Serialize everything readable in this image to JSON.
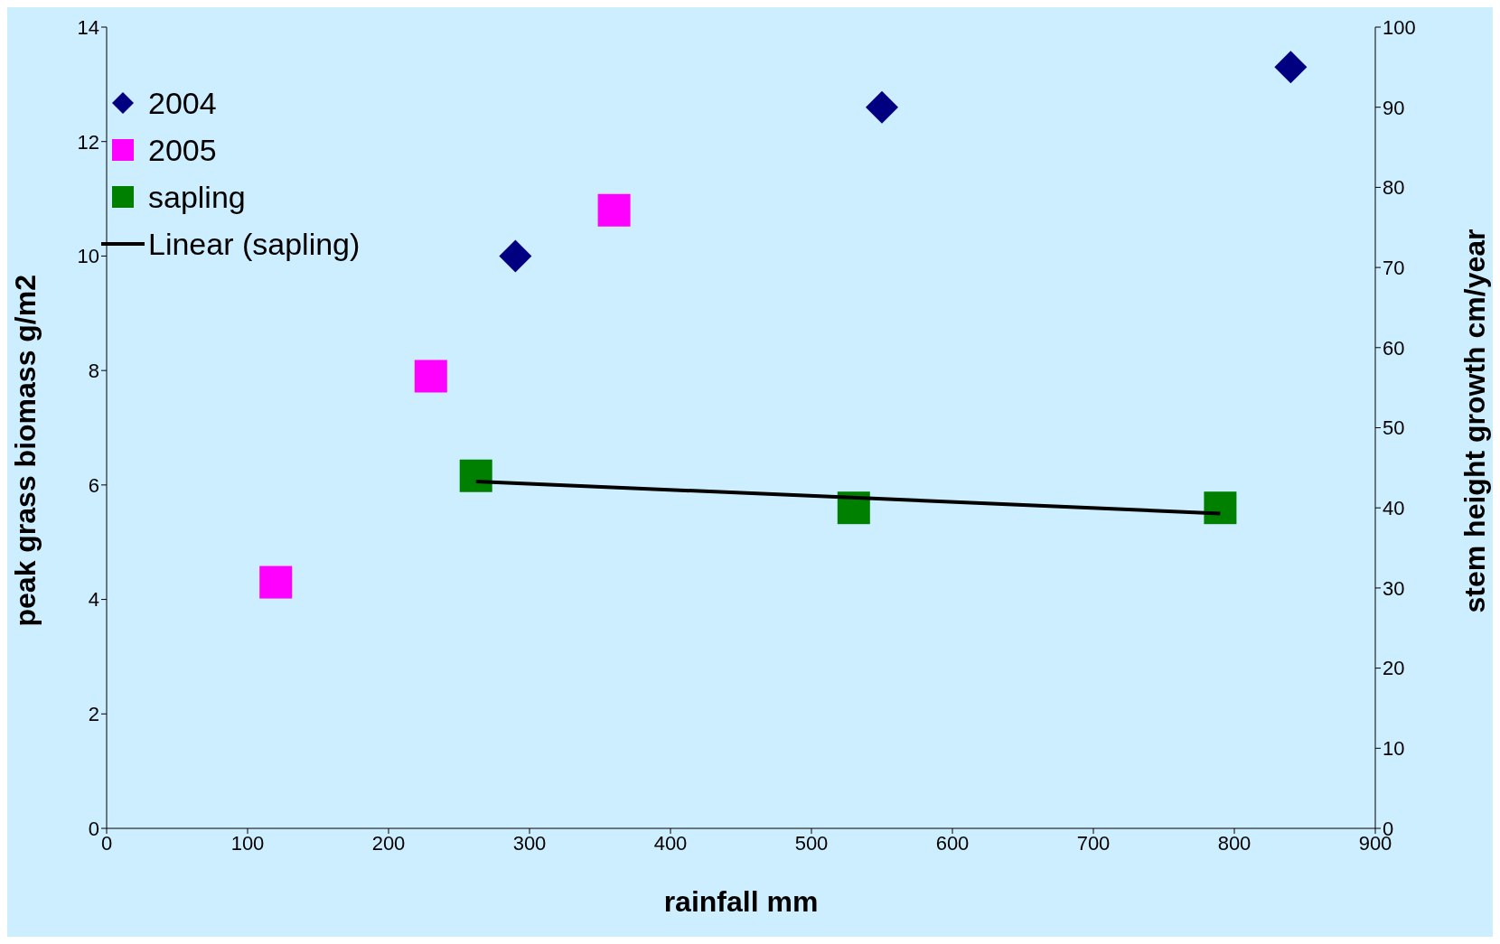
{
  "chart_data": {
    "type": "scatter",
    "xlabel": "rainfall mm",
    "ylabel": "peak grass biomass g/m2",
    "y2label": "stem height growth cm/year",
    "xlim": [
      0,
      900
    ],
    "xticks": [
      0,
      100,
      200,
      300,
      400,
      500,
      600,
      700,
      800,
      900
    ],
    "ylim": [
      0,
      14
    ],
    "yticks": [
      0,
      2,
      4,
      6,
      8,
      10,
      12,
      14
    ],
    "y2lim": [
      0,
      100
    ],
    "y2ticks": [
      0,
      10,
      20,
      30,
      40,
      50,
      60,
      70,
      80,
      90,
      100
    ],
    "grid": false,
    "legend": "top left",
    "series": [
      {
        "name": "2004",
        "color": "#000080",
        "marker": "diamond",
        "x": [
          290,
          550,
          840
        ],
        "values": [
          10.0,
          12.6,
          13.3
        ]
      },
      {
        "name": "2005",
        "color": "#ff00ff",
        "marker": "square",
        "x": [
          120,
          230,
          360
        ],
        "values": [
          4.3,
          7.9,
          10.8
        ]
      },
      {
        "name": "sapling",
        "color": "#008000",
        "marker": "square",
        "axis": "y2",
        "x": [
          262,
          530,
          790
        ],
        "values": [
          44,
          40,
          40
        ]
      },
      {
        "name": "Linear (sapling)",
        "type": "line",
        "color": "#000000",
        "marker": "none",
        "line_style": "solid",
        "axis": "y2",
        "x": [
          262,
          790
        ],
        "values": [
          43.3,
          39.3
        ]
      }
    ]
  }
}
